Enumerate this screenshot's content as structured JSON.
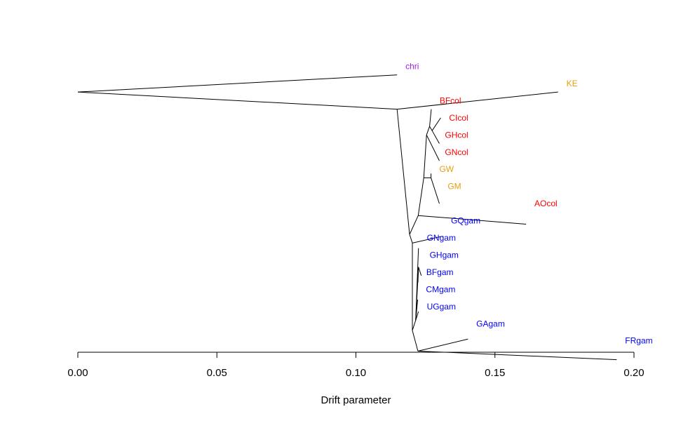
{
  "chart_data": {
    "type": "tree",
    "xlabel": "Drift parameter",
    "xlim": [
      0,
      0.2
    ],
    "ticks": [
      {
        "value": 0.0,
        "label": "0.00"
      },
      {
        "value": 0.05,
        "label": "0.05"
      },
      {
        "value": 0.1,
        "label": "0.10"
      },
      {
        "value": 0.15,
        "label": "0.15"
      },
      {
        "value": 0.2,
        "label": "0.20"
      }
    ],
    "colors": {
      "purple": "#a020f0",
      "orange": "#e5a00d",
      "red": "#ff0000",
      "blue": "#0000ff"
    },
    "nodes": [
      {
        "id": "root",
        "drift": 0.0,
        "row": 5.5
      },
      {
        "id": "chri",
        "drift": 0.1148,
        "row": 4.5
      },
      {
        "id": "n1",
        "drift": 0.1148,
        "row": 6.5
      },
      {
        "id": "KE",
        "drift": 0.1727,
        "row": 5.5
      },
      {
        "id": "n2",
        "drift": 0.1193,
        "row": 13.8
      },
      {
        "id": "n3",
        "drift": 0.1224,
        "row": 12.7
      },
      {
        "id": "AOcol",
        "drift": 0.1612,
        "row": 13.2
      },
      {
        "id": "n4",
        "drift": 0.1244,
        "row": 10.5
      },
      {
        "id": "n5",
        "drift": 0.1254,
        "row": 8.0
      },
      {
        "id": "n6",
        "drift": 0.1265,
        "row": 7.5
      },
      {
        "id": "BFcol",
        "drift": 0.1271,
        "row": 6.5
      },
      {
        "id": "n7",
        "drift": 0.1274,
        "row": 7.75
      },
      {
        "id": "CIcol",
        "drift": 0.1305,
        "row": 7.0
      },
      {
        "id": "GHcol",
        "drift": 0.13,
        "row": 8.5
      },
      {
        "id": "GNcol",
        "drift": 0.13,
        "row": 9.5
      },
      {
        "id": "n8",
        "drift": 0.127,
        "row": 10.5
      },
      {
        "id": "GW",
        "drift": 0.127,
        "row": 10.25
      },
      {
        "id": "GM",
        "drift": 0.13,
        "row": 12.0
      },
      {
        "id": "n9",
        "drift": 0.1203,
        "row": 14.3
      },
      {
        "id": "GQgam",
        "drift": 0.1312,
        "row": 13.9
      },
      {
        "id": "n10",
        "drift": 0.1203,
        "row": 19.4
      },
      {
        "id": "n11",
        "drift": 0.1215,
        "row": 18.8
      },
      {
        "id": "GNgam",
        "drift": 0.1225,
        "row": 14.6
      },
      {
        "id": "n12",
        "drift": 0.1225,
        "row": 15.7
      },
      {
        "id": "GHgam",
        "drift": 0.1235,
        "row": 16.2
      },
      {
        "id": "BFgam",
        "drift": 0.1223,
        "row": 16.6
      },
      {
        "id": "CMgam",
        "drift": 0.1222,
        "row": 17.6
      },
      {
        "id": "UGgam",
        "drift": 0.1225,
        "row": 18.3
      },
      {
        "id": "n13",
        "drift": 0.1223,
        "row": 20.6
      },
      {
        "id": "GAgam",
        "drift": 0.1403,
        "row": 19.9
      },
      {
        "id": "FRgam",
        "drift": 0.1938,
        "row": 21.1
      }
    ],
    "edges": [
      [
        "root",
        "chri"
      ],
      [
        "root",
        "n1"
      ],
      [
        "n1",
        "KE"
      ],
      [
        "n1",
        "n2"
      ],
      [
        "n2",
        "n3"
      ],
      [
        "n3",
        "AOcol"
      ],
      [
        "n3",
        "n4"
      ],
      [
        "n4",
        "n5"
      ],
      [
        "n5",
        "n6"
      ],
      [
        "n6",
        "BFcol"
      ],
      [
        "n6",
        "n7"
      ],
      [
        "n7",
        "CIcol"
      ],
      [
        "n7",
        "GHcol"
      ],
      [
        "n5",
        "GNcol"
      ],
      [
        "n4",
        "n8"
      ],
      [
        "n8",
        "GW"
      ],
      [
        "n8",
        "GM"
      ],
      [
        "n2",
        "n9"
      ],
      [
        "n9",
        "GQgam"
      ],
      [
        "n9",
        "n10"
      ],
      [
        "n10",
        "n11"
      ],
      [
        "n11",
        "GNgam"
      ],
      [
        "n11",
        "n12"
      ],
      [
        "n12",
        "GHgam"
      ],
      [
        "n12",
        "BFgam"
      ],
      [
        "n11",
        "CMgam"
      ],
      [
        "n11",
        "UGgam"
      ],
      [
        "n10",
        "n13"
      ],
      [
        "n13",
        "GAgam"
      ],
      [
        "n13",
        "FRgam"
      ]
    ],
    "tips": [
      {
        "label": "chri",
        "color": "purple",
        "row": 4.0,
        "offset": 0.003
      },
      {
        "label": "KE",
        "color": "orange",
        "row": 5.0,
        "offset": 0.003
      },
      {
        "label": "BFcol",
        "color": "red",
        "row": 6.0,
        "offset": 0.003
      },
      {
        "label": "CIcol",
        "color": "red",
        "row": 7.0,
        "offset": 0.003
      },
      {
        "label": "GHcol",
        "color": "red",
        "row": 8.0,
        "offset": 0.002
      },
      {
        "label": "GNcol",
        "color": "red",
        "row": 9.0,
        "offset": 0.002
      },
      {
        "label": "GW",
        "color": "orange",
        "row": 10.0,
        "offset": 0.003
      },
      {
        "label": "GM",
        "color": "orange",
        "row": 11.0,
        "offset": 0.003
      },
      {
        "label": "AOcol",
        "color": "red",
        "row": 12.0,
        "offset": 0.003
      },
      {
        "label": "GQgam",
        "color": "blue",
        "row": 13.0,
        "offset": 0.003
      },
      {
        "label": "GNgam",
        "color": "blue",
        "row": 14.0,
        "offset": 0.003
      },
      {
        "label": "GHgam",
        "color": "blue",
        "row": 15.0,
        "offset": 0.003
      },
      {
        "label": "BFgam",
        "color": "blue",
        "row": 16.0,
        "offset": 0.003
      },
      {
        "label": "CMgam",
        "color": "blue",
        "row": 17.0,
        "offset": 0.003
      },
      {
        "label": "UGgam",
        "color": "blue",
        "row": 18.0,
        "offset": 0.003
      },
      {
        "label": "GAgam",
        "color": "blue",
        "row": 19.0,
        "offset": 0.003
      },
      {
        "label": "FRgam",
        "color": "blue",
        "row": 20.0,
        "offset": 0.003
      }
    ]
  }
}
